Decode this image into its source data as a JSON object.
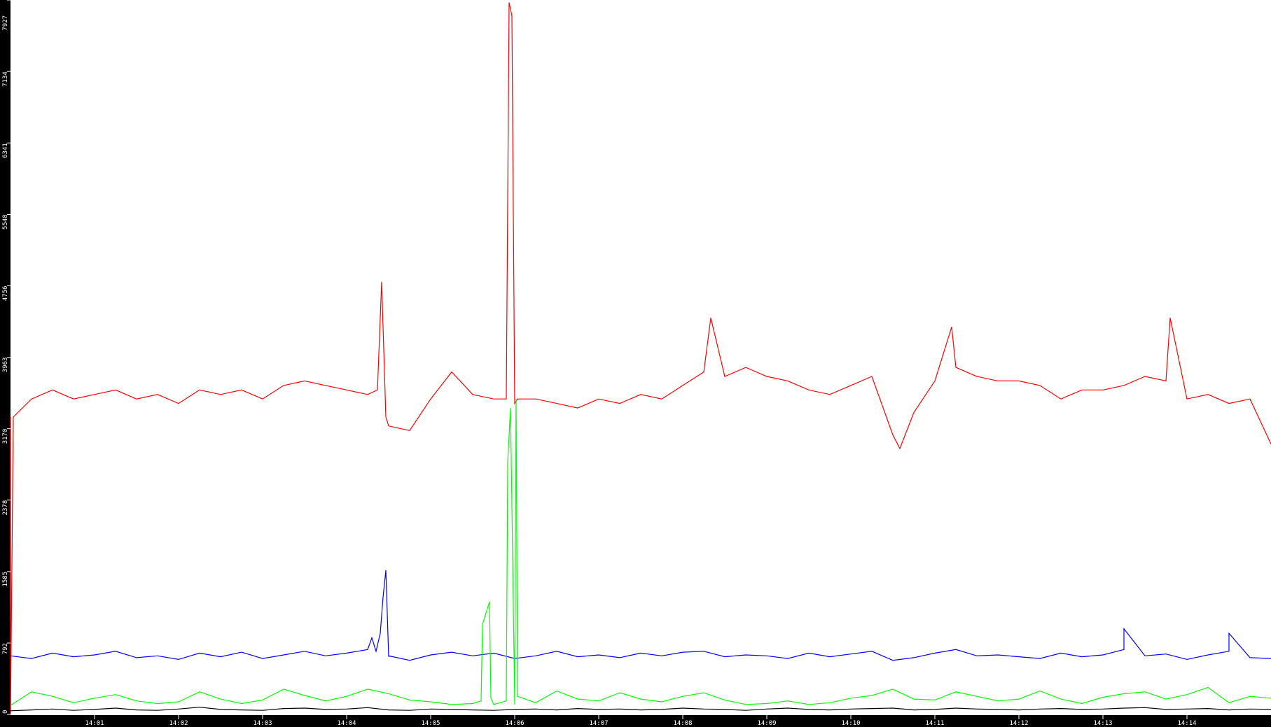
{
  "chart_data": {
    "type": "line",
    "title": "",
    "xlabel": "",
    "ylabel": "",
    "ylim": [
      0,
      7927
    ],
    "xlim": [
      "14:00:00",
      "14:15:00"
    ],
    "grid": false,
    "legend": "none",
    "background": "#ffffff",
    "axis_background": "#000000",
    "y_ticks": [
      "0",
      "792",
      "1585",
      "2378",
      "3170",
      "3963",
      "4756",
      "5548",
      "6341",
      "7134",
      "7927"
    ],
    "x_ticks": [
      "14:01",
      "14:02",
      "14:03",
      "14:04",
      "14:05",
      "14:06",
      "14:07",
      "14:08",
      "14:09",
      "14:10",
      "14:11",
      "14:12",
      "14:13",
      "14:14"
    ],
    "x": [
      "14:00:00",
      "14:00:15",
      "14:00:30",
      "14:00:45",
      "14:01:00",
      "14:01:15",
      "14:01:30",
      "14:01:45",
      "14:02:00",
      "14:02:15",
      "14:02:30",
      "14:02:45",
      "14:03:00",
      "14:03:15",
      "14:03:30",
      "14:03:45",
      "14:04:00",
      "14:04:15",
      "14:04:30",
      "14:04:45",
      "14:05:00",
      "14:05:15",
      "14:05:30",
      "14:05:45",
      "14:06:00",
      "14:06:15",
      "14:06:30",
      "14:06:45",
      "14:07:00",
      "14:07:15",
      "14:07:30",
      "14:07:45",
      "14:08:00",
      "14:08:15",
      "14:08:30",
      "14:08:45",
      "14:09:00",
      "14:09:15",
      "14:09:30",
      "14:09:45",
      "14:10:00",
      "14:10:15",
      "14:10:30",
      "14:10:45",
      "14:11:00",
      "14:11:15",
      "14:11:30",
      "14:11:45",
      "14:12:00",
      "14:12:15",
      "14:12:30",
      "14:12:45",
      "14:13:00",
      "14:13:15",
      "14:13:30",
      "14:13:45",
      "14:14:00",
      "14:14:15",
      "14:14:30",
      "14:14:45",
      "14:15:00"
    ],
    "series": [
      {
        "color": "#ff0000",
        "values": [
          3300,
          3500,
          3600,
          3500,
          3550,
          3600,
          3500,
          3550,
          3450,
          3600,
          3550,
          3600,
          3500,
          3650,
          3700,
          3650,
          3600,
          3550,
          3200,
          3150,
          3500,
          3800,
          3550,
          3500,
          3450,
          3500,
          3450,
          3400,
          3500,
          3450,
          3550,
          3500,
          3650,
          3800,
          3750,
          3850,
          3750,
          3700,
          3600,
          3550,
          3650,
          3750,
          3100,
          3350,
          3700,
          3850,
          3750,
          3700,
          3700,
          3650,
          3500,
          3600,
          3600,
          3650,
          3750,
          3700,
          3500,
          3550,
          3450,
          3500,
          3000
        ],
        "extra_points": [
          [
            "14:00:00",
            0
          ],
          [
            "14:00:02",
            3300
          ],
          [
            "14:04:22",
            3600
          ],
          [
            "14:04:25",
            4800
          ],
          [
            "14:04:28",
            3300
          ],
          [
            "14:05:54",
            3500
          ],
          [
            "14:05:56",
            7900
          ],
          [
            "14:05:58",
            7750
          ],
          [
            "14:06:02",
            3500
          ],
          [
            "14:10:35",
            2950
          ],
          [
            "14:11:12",
            4300
          ],
          [
            "14:13:48",
            4400
          ],
          [
            "14:08:20",
            4400
          ]
        ]
      },
      {
        "color": "#0000ff",
        "values": [
          650,
          620,
          680,
          640,
          660,
          700,
          630,
          650,
          610,
          680,
          640,
          690,
          620,
          660,
          700,
          650,
          680,
          720,
          640,
          600,
          660,
          690,
          650,
          680,
          620,
          650,
          700,
          640,
          660,
          630,
          680,
          650,
          690,
          700,
          640,
          660,
          650,
          620,
          680,
          640,
          670,
          700,
          600,
          630,
          680,
          720,
          650,
          660,
          640,
          620,
          680,
          640,
          660,
          720,
          650,
          670,
          610,
          660,
          700,
          630,
          620
        ],
        "extra_points": [
          [
            "14:04:18",
            850
          ],
          [
            "14:04:21",
            700
          ],
          [
            "14:04:24",
            900
          ],
          [
            "14:04:26",
            1300
          ],
          [
            "14:04:28",
            1600
          ],
          [
            "14:04:30",
            650
          ],
          [
            "14:13:15",
            950
          ],
          [
            "14:14:30",
            900
          ]
        ]
      },
      {
        "color": "#00ff00",
        "values": [
          100,
          250,
          200,
          130,
          180,
          220,
          150,
          120,
          140,
          250,
          170,
          120,
          160,
          280,
          210,
          150,
          200,
          280,
          230,
          160,
          140,
          110,
          120,
          110,
          110,
          130,
          260,
          170,
          150,
          240,
          170,
          140,
          200,
          240,
          160,
          110,
          120,
          150,
          110,
          130,
          180,
          210,
          280,
          170,
          160,
          250,
          200,
          150,
          170,
          260,
          170,
          120,
          190,
          230,
          250,
          170,
          220,
          300,
          130,
          200,
          180
        ],
        "extra_points": [
          [
            "14:05:36",
            150
          ],
          [
            "14:05:37",
            1000
          ],
          [
            "14:05:40",
            1150
          ],
          [
            "14:05:42",
            1250
          ],
          [
            "14:05:43",
            180
          ],
          [
            "14:05:54",
            150
          ],
          [
            "14:05:55",
            2800
          ],
          [
            "14:05:57",
            3400
          ],
          [
            "14:06:01",
            3500
          ],
          [
            "14:06:02",
            200
          ]
        ]
      },
      {
        "color": "#000000",
        "values": [
          40,
          50,
          60,
          45,
          55,
          70,
          50,
          45,
          60,
          80,
          55,
          50,
          45,
          65,
          70,
          55,
          60,
          75,
          50,
          45,
          60,
          55,
          50,
          45,
          55,
          60,
          50,
          65,
          55,
          60,
          50,
          55,
          70,
          60,
          55,
          45,
          60,
          70,
          55,
          50,
          60,
          65,
          70,
          50,
          55,
          70,
          60,
          55,
          50,
          60,
          65,
          55,
          60,
          70,
          75,
          55,
          60,
          65,
          50,
          60,
          55
        ],
        "extra_points": []
      }
    ]
  }
}
